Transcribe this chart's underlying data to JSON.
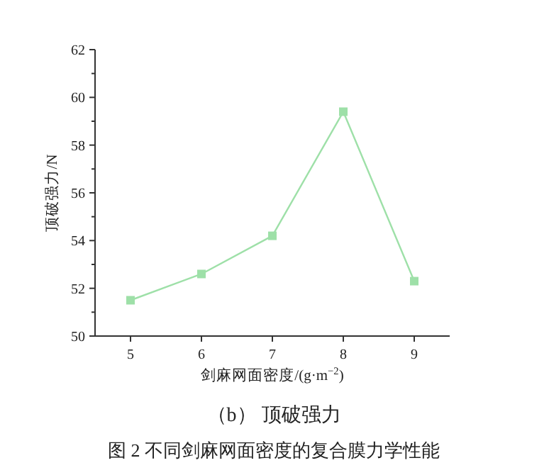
{
  "chart_data": {
    "type": "line",
    "title": "（b） 顶破强力",
    "xlabel": "剑麻网面密度/(g·m$^{−2}$)",
    "ylabel": "顶破强力/N",
    "x": [
      5,
      6,
      7,
      8,
      9
    ],
    "series": [
      {
        "color": "#9ee0a8",
        "values": [
          51.5,
          52.6,
          54.2,
          59.4,
          52.3
        ]
      }
    ],
    "xlim": [
      4.5,
      9.5
    ],
    "xticks": [
      5,
      6,
      7,
      8,
      9
    ],
    "ylim": [
      50,
      62
    ],
    "yticks": [
      50,
      {
        "value": 51,
        "label": null
      },
      52,
      {
        "value": 53,
        "label": null
      },
      54,
      {
        "value": 55,
        "label": null
      },
      56,
      {
        "value": 57,
        "label": null
      },
      58,
      {
        "value": 59,
        "label": null
      },
      60,
      {
        "value": 61,
        "label": null
      },
      62
    ],
    "marker": "square",
    "line_style": "solid",
    "grid": false,
    "annotations": [
      "图 2 不同剑麻网面密度的复合膜力学性能"
    ]
  }
}
